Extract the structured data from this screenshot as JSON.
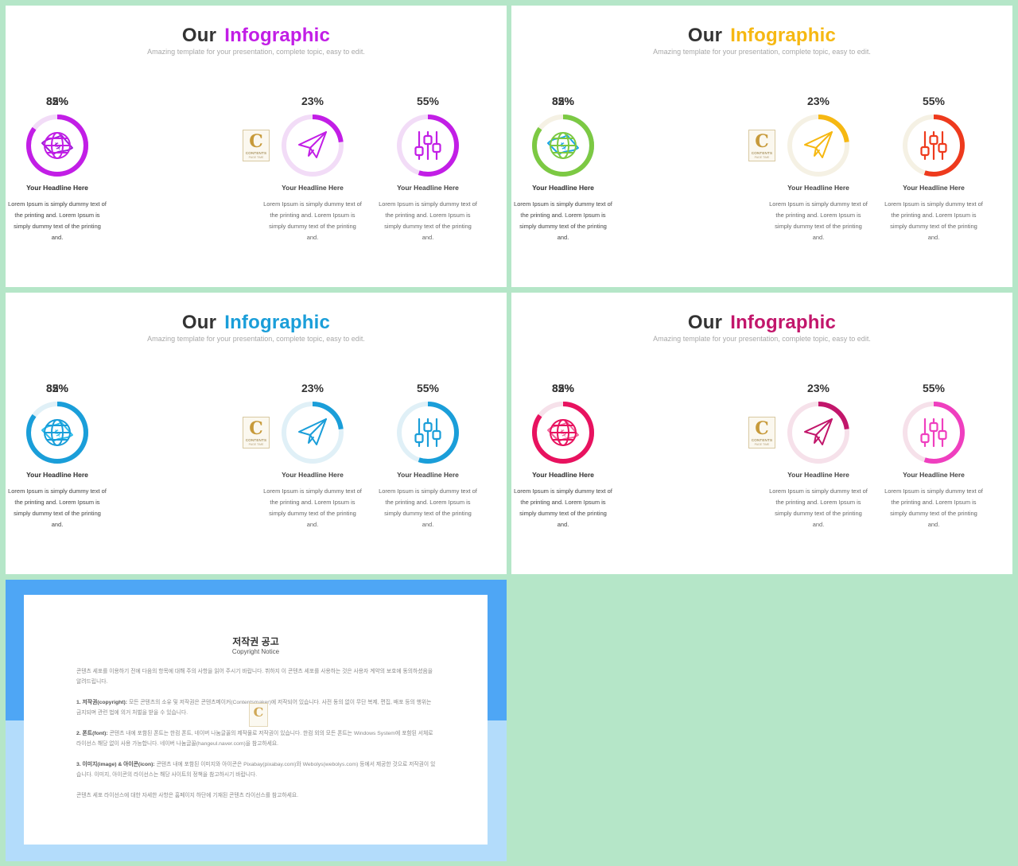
{
  "slides": [
    {
      "title_plain": "Our",
      "title_accent": "Infographic",
      "accent_color": "#c21ee6",
      "subtitle": "Amazing template for your presentation, complete topic, easy to edit.",
      "track_color": "#f2dcf7",
      "items": [
        {
          "percent_label": "23%",
          "value": 0.23,
          "icon": "paper-plane-icon",
          "color": "#c21ee6",
          "headline": "Your Headline Here",
          "description": "Lorem Ipsum is simply dummy text of the printing and. Lorem Ipsum is simply dummy text of the printing and."
        },
        {
          "percent_label": "55%",
          "value": 0.55,
          "icon": "sliders-icon",
          "color": "#c21ee6",
          "headline": "Your Headline Here",
          "description": "Lorem Ipsum is simply dummy text of the printing and. Lorem Ipsum is simply dummy text of the printing and."
        },
        {
          "percent_label": "32%",
          "value": 0.32,
          "icon": "money-bill-icon",
          "color": "#9b1dd6",
          "headline": "Your Headline Here",
          "description": "Lorem Ipsum is simply dummy text of the printing and. Lorem Ipsum is simply dummy text of the printing and."
        },
        {
          "percent_label": "85%",
          "value": 0.85,
          "icon": "globe-icon",
          "color": "#c21ee6",
          "headline": "Your Headline Here",
          "description": "Lorem Ipsum is simply dummy text of the printing and. Lorem Ipsum is simply dummy text of the printing and."
        }
      ]
    },
    {
      "title_plain": "Our",
      "title_accent": "Infographic",
      "accent_color": "#f6b812",
      "subtitle": "Amazing template for your presentation, complete topic, easy to edit.",
      "track_color": "#f5f1e4",
      "items": [
        {
          "percent_label": "23%",
          "value": 0.23,
          "icon": "paper-plane-icon",
          "color": "#f6b812",
          "headline": "Your Headline Here",
          "description": "Lorem Ipsum is simply dummy text of the printing and. Lorem Ipsum is simply dummy text of the printing and."
        },
        {
          "percent_label": "55%",
          "value": 0.55,
          "icon": "sliders-icon",
          "color": "#ee3a1d",
          "headline": "Your Headline Here",
          "description": "Lorem Ipsum is simply dummy text of the printing and. Lorem Ipsum is simply dummy text of the printing and."
        },
        {
          "percent_label": "32%",
          "value": 0.32,
          "icon": "money-bill-icon",
          "color": "#1aa6e8",
          "headline": "Your Headline Here",
          "description": "Lorem Ipsum is simply dummy text of the printing and. Lorem Ipsum is simply dummy text of the printing and."
        },
        {
          "percent_label": "85%",
          "value": 0.85,
          "icon": "globe-icon",
          "color": "#7cc943",
          "headline": "Your Headline Here",
          "description": "Lorem Ipsum is simply dummy text of the printing and. Lorem Ipsum is simply dummy text of the printing and."
        }
      ]
    },
    {
      "title_plain": "Our",
      "title_accent": "Infographic",
      "accent_color": "#1a9ed9",
      "subtitle": "Amazing template for your presentation, complete topic, easy to edit.",
      "track_color": "#e0f0f7",
      "items": [
        {
          "percent_label": "23%",
          "value": 0.23,
          "icon": "paper-plane-icon",
          "color": "#1a9ed9",
          "headline": "Your Headline Here",
          "description": "Lorem Ipsum is simply dummy text of the printing and. Lorem Ipsum is simply dummy text of the printing and."
        },
        {
          "percent_label": "55%",
          "value": 0.55,
          "icon": "sliders-icon",
          "color": "#1a9ed9",
          "headline": "Your Headline Here",
          "description": "Lorem Ipsum is simply dummy text of the printing and. Lorem Ipsum is simply dummy text of the printing and."
        },
        {
          "percent_label": "32%",
          "value": 0.32,
          "icon": "money-bill-icon",
          "color": "#2bbdec",
          "headline": "Your Headline Here",
          "description": "Lorem Ipsum is simply dummy text of the printing and. Lorem Ipsum is simply dummy text of the printing and."
        },
        {
          "percent_label": "85%",
          "value": 0.85,
          "icon": "globe-icon",
          "color": "#1a9ed9",
          "headline": "Your Headline Here",
          "description": "Lorem Ipsum is simply dummy text of the printing and. Lorem Ipsum is simply dummy text of the printing and."
        }
      ]
    },
    {
      "title_plain": "Our",
      "title_accent": "Infographic",
      "accent_color": "#c2166b",
      "subtitle": "Amazing template for your presentation, complete topic, easy to edit.",
      "track_color": "#f6e1ea",
      "items": [
        {
          "percent_label": "23%",
          "value": 0.23,
          "icon": "paper-plane-icon",
          "color": "#c2166b",
          "headline": "Your Headline Here",
          "description": "Lorem Ipsum is simply dummy text of the printing and. Lorem Ipsum is simply dummy text of the printing and."
        },
        {
          "percent_label": "55%",
          "value": 0.55,
          "icon": "sliders-icon",
          "color": "#ef3fbf",
          "headline": "Your Headline Here",
          "description": "Lorem Ipsum is simply dummy text of the printing and. Lorem Ipsum is simply dummy text of the printing and."
        },
        {
          "percent_label": "32%",
          "value": 0.32,
          "icon": "money-bill-icon",
          "color": "#f0679b",
          "headline": "Your Headline Here",
          "description": "Lorem Ipsum is simply dummy text of the printing and. Lorem Ipsum is simply dummy text of the printing and."
        },
        {
          "percent_label": "85%",
          "value": 0.85,
          "icon": "globe-icon",
          "color": "#e8125f",
          "headline": "Your Headline Here",
          "description": "Lorem Ipsum is simply dummy text of the printing and. Lorem Ipsum is simply dummy text of the printing and."
        }
      ]
    }
  ],
  "logo": {
    "letter": "C",
    "text": "CONTENTS",
    "tiny": "PAGE TIME"
  },
  "copyright": {
    "title": "저작권 공고",
    "subtitle": "Copyright Notice",
    "intro": "콘텐츠 세포를 이용하기 전에 다음의 항목에 대해 주의 사항을 읽어 주시기 바랍니다. 뷔하지 이 콘텐츠 세포를 사용하는 것은 사용자 계약의 보호에 동의하셨음을 알려드립니다.",
    "p1_label": "1. 저작권(copyright):",
    "p1_text": "모든 콘텐츠의 소유 및 저작권은 콘텐츠메이커(Contentsmaker)에 저작되어 있습니다. 사전 동의 없이 무단 복제, 편집, 배포 등의 행위는 금지되며 관련 법에 의거 처벌을 받을 수 있습니다.",
    "p2_label": "2. 폰트(font):",
    "p2_text": "콘텐츠 내에 포함된 폰트는 한컴 폰트, 네이버 나눔글꼴의 제작물로 저작권이 있습니다. 한컴 외의 모든 폰트는 Windows System에 포함된 서체로 라이선스 해당 없이 사용 가능합니다. 네이버 나눔글꼴(hangeul.naver.com)을 참고하세요.",
    "p3_label": "3. 이미지(image) & 아이콘(icon):",
    "p3_text": "콘텐츠 내에 포함된 이미지와 아이콘은 Pixabay(pixabay.com)와 Webolys(webolys.com) 등에서 제공한 것으로 저작권이 있습니다. 이미지, 아이콘의 라이선스는 해당 사이트의 정책을 참고하시기 바랍니다.",
    "outro": "콘텐츠 세포 라이선스에 대한 자세한 사항은 홈페이지 하단에 기재된 콘텐츠 라이선스를 참고하세요."
  }
}
